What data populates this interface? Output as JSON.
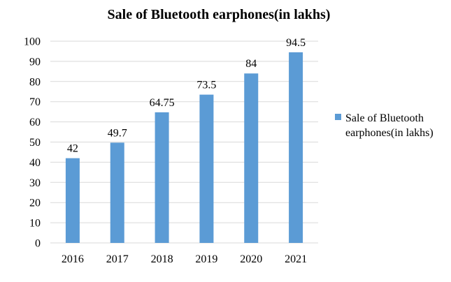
{
  "chart_data": {
    "type": "bar",
    "title": "Sale of Bluetooth earphones(in lakhs)",
    "categories": [
      "2016",
      "2017",
      "2018",
      "2019",
      "2020",
      "2021"
    ],
    "series": [
      {
        "name": "Sale of Bluetooth earphones(in lakhs)",
        "legend_lines": [
          "Sale of Bluetooth",
          "earphones(in lakhs)"
        ],
        "values": [
          42,
          49.7,
          64.75,
          73.5,
          84,
          94.5
        ],
        "data_labels": [
          "42",
          "49.7",
          "64.75",
          "73.5",
          "84",
          "94.5"
        ],
        "color": "#5B9BD5"
      }
    ],
    "xlabel": "",
    "ylabel": "",
    "ylim": [
      0,
      100
    ],
    "yticks": [
      0,
      10,
      20,
      30,
      40,
      50,
      60,
      70,
      80,
      90,
      100
    ],
    "grid": true,
    "grid_color": "#d9d9d9",
    "legend": "right"
  }
}
